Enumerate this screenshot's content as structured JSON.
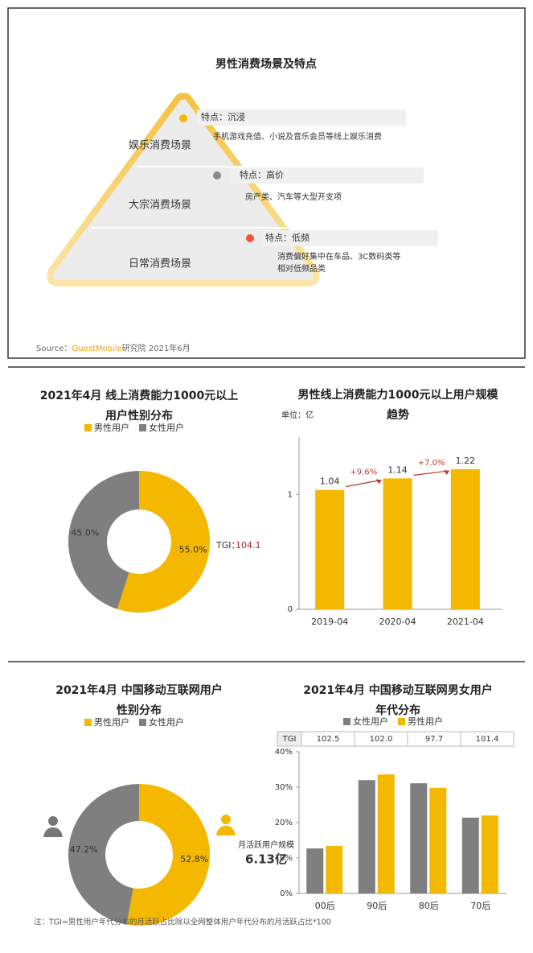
{
  "report": {
    "title": "男性消费场景及特点",
    "levels": [
      {
        "name": "娱乐消费场景",
        "feature": "特点：沉浸",
        "details": [
          "手机游戏充值、小说及音乐会员等线上娱乐消费"
        ]
      },
      {
        "name": "大宗消费场景",
        "feature": "特点：高价",
        "details": [
          "房产类、汽车等大型开支项"
        ]
      },
      {
        "name": "日常消费场景",
        "feature": "特点：低频",
        "details": [
          "消费偏好集中在车品、3C数码类等",
          "相对低频品类"
        ]
      }
    ],
    "source": {
      "label": "Source：",
      "brand": "QuestMobile",
      "rest": "研究院 2021年6月"
    }
  },
  "chart_data": [
    {
      "type": "pie",
      "title": [
        "2021年4月 线上消费能力1000元以上",
        "用户性别分布"
      ],
      "categories": [
        "男性用户",
        "女性用户"
      ],
      "values": [
        55.0,
        45.0
      ],
      "value_labels": [
        "55.0%",
        "45.0%"
      ],
      "colors": [
        "#f5b800",
        "#7f7f7f"
      ],
      "annotation": {
        "label": "TGI：",
        "value": 104.1
      }
    },
    {
      "type": "bar",
      "title": [
        "男性线上消费能力1000元以上用户规模",
        "趋势"
      ],
      "unit": "单位：亿",
      "categories": [
        "2019-04",
        "2020-04",
        "2021-04"
      ],
      "values": [
        1.04,
        1.14,
        1.22
      ],
      "color": "#f5b800",
      "ylim": [
        0,
        1.5
      ],
      "yticks": [
        0,
        1
      ],
      "growth_labels": [
        "+9.6%",
        "+7.0%"
      ]
    },
    {
      "type": "pie",
      "title": [
        "2021年4月 中国移动互联网用户",
        "性别分布"
      ],
      "categories": [
        "男性用户",
        "女性用户"
      ],
      "values": [
        52.8,
        47.2
      ],
      "value_labels": [
        "52.8%",
        "47.2%"
      ],
      "colors": [
        "#f5b800",
        "#7f7f7f"
      ],
      "annotation_lines": [
        "月活跃用户规模",
        "6.13亿"
      ]
    },
    {
      "type": "grouped_bar",
      "title": [
        "2021年4月 中国移动互联网男女用户",
        "年代分布"
      ],
      "categories": [
        "00后",
        "90后",
        "80后",
        "70后"
      ],
      "series": [
        {
          "name": "女性用户",
          "color": "#7f7f7f",
          "values": [
            12.7,
            32.0,
            31.1,
            21.4
          ]
        },
        {
          "name": "男性用户",
          "color": "#f5b800",
          "values": [
            13.4,
            33.6,
            29.8,
            22.0
          ]
        }
      ],
      "ylim": [
        0,
        40
      ],
      "yticks": [
        {
          "value": 0,
          "label": "0%"
        },
        {
          "value": 10,
          "label": "10%"
        },
        {
          "value": 20,
          "label": "20%"
        },
        {
          "value": 30,
          "label": "30%"
        },
        {
          "value": 40,
          "label": "40%"
        }
      ],
      "tgi": {
        "label": "TGI",
        "values": [
          102.5,
          102.0,
          97.7,
          101.4
        ],
        "value_labels": [
          "102.5",
          "102.0",
          "97.7",
          "101.4"
        ]
      },
      "note": "注：TGI=男性用户年代分布的月活跃占比除以全网整体用户年代分布的月活跃占比*100"
    }
  ]
}
